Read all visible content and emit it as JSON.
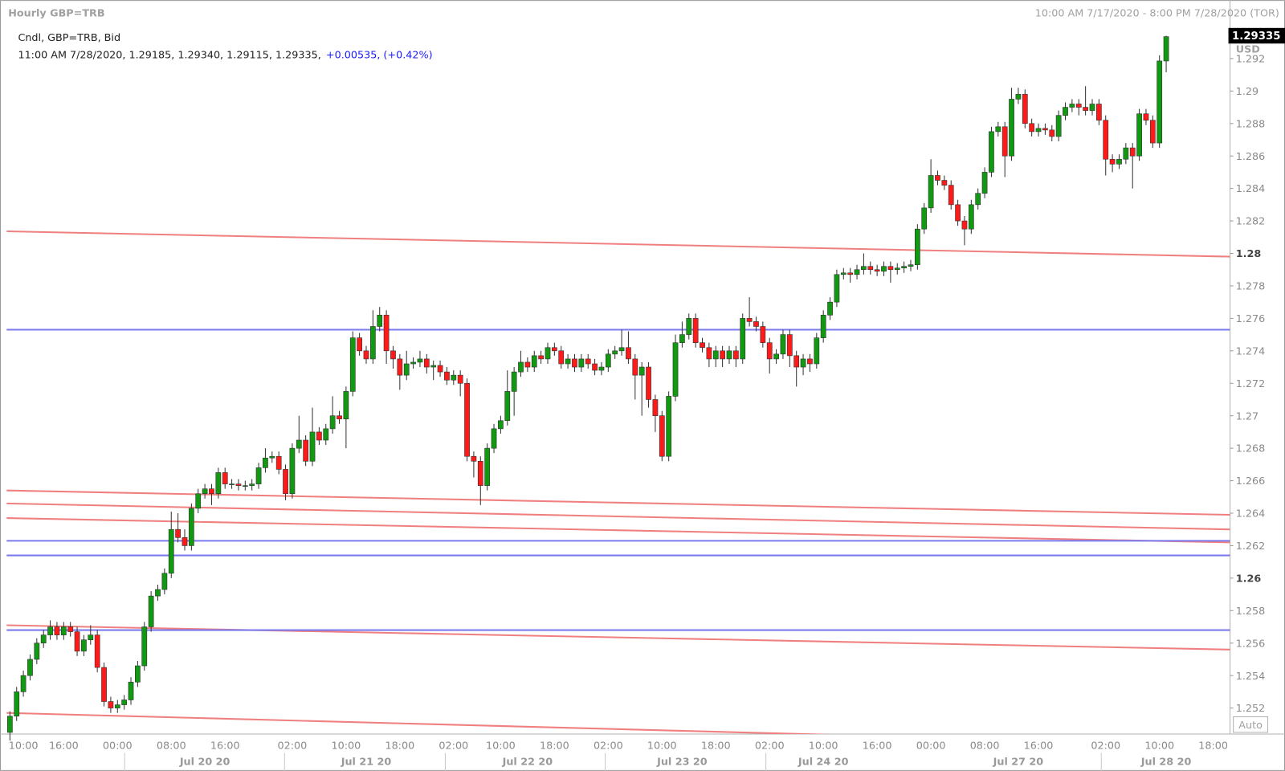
{
  "chart_data": {
    "type": "candlestick",
    "title": "Hourly GBP=TRB",
    "date_range": "10:00 AM 7/17/2020 - 8:00 PM 7/28/2020 (TOR)",
    "legend_title": "Cndl, GBP=TRB, Bid",
    "info_line": "11:00 AM 7/28/2020, 1.29185, 1.29340, 1.29115, 1.29335,",
    "info_change": "+0.00535, (+0.42%)",
    "last_price_label": "1.29335",
    "currency": "USD",
    "auto_label": "Auto",
    "up_color": "#119911",
    "down_color": "#ff1a1a",
    "change_color": "#1a1aff",
    "ylim": [
      1.2504,
      1.2955
    ],
    "yticks": [
      1.252,
      1.254,
      1.256,
      1.258,
      1.26,
      1.262,
      1.264,
      1.266,
      1.268,
      1.27,
      1.272,
      1.274,
      1.276,
      1.278,
      1.28,
      1.282,
      1.284,
      1.286,
      1.288,
      1.29,
      1.292
    ],
    "categories": [
      null,
      null,
      "10:00",
      null,
      null,
      null,
      null,
      null,
      "16:00",
      null,
      null,
      null,
      null,
      null,
      null,
      null,
      "00:00",
      null,
      null,
      null,
      null,
      null,
      null,
      null,
      "08:00",
      null,
      null,
      null,
      null,
      null,
      null,
      null,
      "16:00",
      null,
      null,
      null,
      null,
      null,
      null,
      null,
      null,
      null,
      "02:00",
      null,
      null,
      null,
      null,
      null,
      null,
      null,
      "10:00",
      null,
      null,
      null,
      null,
      null,
      null,
      null,
      "18:00",
      null,
      null,
      null,
      null,
      null,
      null,
      null,
      "02:00",
      null,
      null,
      null,
      null,
      null,
      null,
      "10:00",
      null,
      null,
      null,
      null,
      null,
      null,
      null,
      "18:00",
      null,
      null,
      null,
      null,
      null,
      null,
      null,
      "02:00",
      null,
      null,
      null,
      null,
      null,
      null,
      null,
      "10:00",
      null,
      null,
      null,
      null,
      null,
      null,
      null,
      "18:00",
      null,
      null,
      null,
      null,
      null,
      null,
      null,
      "02:00",
      null,
      null,
      null,
      null,
      null,
      null,
      null,
      "10:00",
      null,
      null,
      null,
      null,
      null,
      null,
      null,
      "16:00",
      null,
      null,
      null,
      null,
      null,
      null,
      null,
      "00:00",
      null,
      null,
      null,
      null,
      null,
      null,
      null,
      "08:00",
      null,
      null,
      null,
      null,
      null,
      null,
      null,
      "16:00",
      null,
      null,
      null,
      null,
      null,
      null,
      null,
      null,
      null,
      "02:00",
      null,
      null,
      null,
      null,
      null,
      null,
      null,
      "10:00",
      null,
      null,
      null,
      null,
      null,
      null,
      null,
      "18:00",
      null,
      null
    ],
    "date_labels": [
      null,
      null,
      null,
      null,
      null,
      null,
      null,
      null,
      null,
      null,
      null,
      null,
      null,
      null,
      null,
      null,
      null,
      null,
      null,
      null,
      null,
      null,
      null,
      null,
      null,
      null,
      null,
      null,
      null,
      "Jul 20 20",
      null,
      null,
      null,
      null,
      null,
      null,
      null,
      null,
      null,
      null,
      null,
      null,
      null,
      null,
      null,
      null,
      null,
      null,
      null,
      null,
      null,
      null,
      null,
      "Jul 21 20",
      null,
      null,
      null,
      null,
      null,
      null,
      null,
      null,
      null,
      null,
      null,
      null,
      null,
      null,
      null,
      null,
      null,
      null,
      null,
      null,
      null,
      null,
      null,
      "Jul 22 20",
      null,
      null,
      null,
      null,
      null,
      null,
      null,
      null,
      null,
      null,
      null,
      null,
      null,
      null,
      null,
      null,
      null,
      null,
      null,
      null,
      null,
      null,
      "Jul 23 20",
      null,
      null,
      null,
      null,
      null,
      null,
      null,
      null,
      null,
      null,
      null,
      null,
      null,
      null,
      null,
      null,
      null,
      null,
      null,
      null,
      "Jul 24 20",
      null,
      null,
      null,
      null,
      null,
      null,
      null,
      null,
      null,
      null,
      null,
      null,
      null,
      null,
      null,
      null,
      null,
      null,
      null,
      null,
      null,
      null,
      null,
      null,
      null,
      null,
      null,
      null,
      "Jul 27 20",
      null,
      null,
      null,
      null,
      null,
      null,
      null,
      null,
      null,
      null,
      null,
      null,
      null,
      null,
      null,
      null,
      null,
      null,
      null,
      null,
      null,
      "Jul 28 20",
      null,
      null,
      null,
      null,
      null,
      null,
      null,
      null,
      null
    ],
    "open": [
      1.2505,
      1.2515,
      1.253,
      1.254,
      1.255,
      1.256,
      1.2565,
      1.257,
      1.2565,
      1.257,
      1.2567,
      1.2555,
      1.2562,
      1.2565,
      1.2545,
      1.2524,
      1.252,
      1.2522,
      1.2525,
      1.2536,
      1.2546,
      1.257,
      1.2589,
      1.2593,
      1.2603,
      1.263,
      1.2625,
      1.262,
      1.2643,
      1.2652,
      1.2655,
      1.2652,
      1.2665,
      1.2658,
      1.2658,
      1.2657,
      1.2657,
      1.2658,
      1.2668,
      1.2674,
      1.2675,
      1.2667,
      1.2652,
      1.268,
      1.2685,
      1.2672,
      1.269,
      1.2685,
      1.2692,
      1.27,
      1.2698,
      1.2715,
      1.2748,
      1.274,
      1.2735,
      1.2755,
      1.2762,
      1.274,
      1.2735,
      1.2725,
      1.2732,
      1.2733,
      1.2735,
      1.273,
      1.2731,
      1.2727,
      1.2722,
      1.2725,
      1.272,
      1.2675,
      1.2672,
      1.2657,
      1.268,
      1.2692,
      1.2697,
      1.2715,
      1.2727,
      1.2733,
      1.273,
      1.2737,
      1.2735,
      1.2742,
      1.274,
      1.2732,
      1.2735,
      1.273,
      1.2735,
      1.2732,
      1.2728,
      1.273,
      1.2738,
      1.274,
      1.2742,
      1.2735,
      1.2725,
      1.273,
      1.271,
      1.27,
      1.2675,
      1.2712,
      1.2745,
      1.275,
      1.276,
      1.2745,
      1.2742,
      1.2735,
      1.274,
      1.2735,
      1.274,
      1.2735,
      1.276,
      1.2758,
      1.2755,
      1.2745,
      1.2735,
      1.2738,
      1.275,
      1.2737,
      1.273,
      1.2735,
      1.2732,
      1.2748,
      1.2762,
      1.277,
      1.2787,
      1.2788,
      1.2787,
      1.279,
      1.2792,
      1.279,
      1.2789,
      1.2792,
      1.279,
      1.2791,
      1.2792,
      1.2793,
      1.2815,
      1.2828,
      1.2848,
      1.2845,
      1.2842,
      1.283,
      1.282,
      1.2815,
      1.283,
      1.2837,
      1.285,
      1.2875,
      1.2878,
      1.286,
      1.2895,
      1.2898,
      1.288,
      1.2875,
      1.2877,
      1.2876,
      1.2872,
      1.2885,
      1.289,
      1.2892,
      1.289,
      1.2888,
      1.2892,
      1.2882,
      1.2858,
      1.2855,
      1.2858,
      1.2865,
      1.286,
      1.2886,
      1.2882,
      1.2868,
      1.29185,
      null,
      null,
      null,
      null,
      null,
      null,
      null,
      null,
      null
    ],
    "high": [
      1.2518,
      1.2533,
      1.2543,
      1.2553,
      1.2563,
      1.2568,
      1.2574,
      1.2573,
      1.2573,
      1.2573,
      1.257,
      1.2565,
      1.2571,
      1.2568,
      1.2548,
      1.2527,
      1.2525,
      1.2528,
      1.2539,
      1.2549,
      1.2573,
      1.2592,
      1.2596,
      1.2606,
      1.2641,
      1.264,
      1.263,
      1.2646,
      1.2655,
      1.2658,
      1.2658,
      1.2668,
      1.2668,
      1.2661,
      1.2661,
      1.266,
      1.2661,
      1.2671,
      1.268,
      1.2678,
      1.2678,
      1.267,
      1.2683,
      1.27,
      1.2688,
      1.2705,
      1.2693,
      1.2695,
      1.2712,
      1.2703,
      1.2718,
      1.2752,
      1.2751,
      1.2743,
      1.2765,
      1.2767,
      1.2765,
      1.2743,
      1.2738,
      1.274,
      1.2736,
      1.274,
      1.2738,
      1.2734,
      1.2734,
      1.273,
      1.2728,
      1.2728,
      1.2723,
      1.2678,
      1.2675,
      1.2683,
      1.2695,
      1.27,
      1.2728,
      1.273,
      1.274,
      1.2736,
      1.274,
      1.274,
      1.2745,
      1.2745,
      1.2743,
      1.2738,
      1.2738,
      1.2738,
      1.2738,
      1.2735,
      1.2733,
      1.2741,
      1.2743,
      1.2753,
      1.2752,
      1.2738,
      1.2733,
      1.2733,
      1.2713,
      1.2703,
      1.2715,
      1.275,
      1.2758,
      1.2763,
      1.2763,
      1.2748,
      1.2745,
      1.2743,
      1.2743,
      1.2743,
      1.2743,
      1.2763,
      1.2773,
      1.2761,
      1.2758,
      1.2748,
      1.2741,
      1.2753,
      1.2753,
      1.274,
      1.2738,
      1.2738,
      1.2751,
      1.2765,
      1.2773,
      1.279,
      1.2791,
      1.2791,
      1.2793,
      1.28,
      1.2795,
      1.2793,
      1.2795,
      1.2795,
      1.2794,
      1.2795,
      1.2796,
      1.2818,
      1.2831,
      1.2858,
      1.2851,
      1.2848,
      1.2845,
      1.2833,
      1.2823,
      1.2833,
      1.284,
      1.2853,
      1.2878,
      1.2881,
      1.2881,
      1.2902,
      1.2902,
      1.2901,
      1.2883,
      1.288,
      1.288,
      1.2879,
      1.2888,
      1.2893,
      1.2895,
      1.2895,
      1.2903,
      1.2895,
      1.2895,
      1.2885,
      1.2861,
      1.2861,
      1.2868,
      1.2868,
      1.2889,
      1.2889,
      1.2885,
      1.2922,
      1.2934,
      null,
      null,
      null,
      null,
      null,
      null,
      null,
      null,
      null
    ],
    "low": [
      1.25,
      1.2512,
      1.2527,
      1.2537,
      1.2547,
      1.2557,
      1.2562,
      1.2562,
      1.2562,
      1.2564,
      1.2552,
      1.2552,
      1.2559,
      1.2542,
      1.2521,
      1.2517,
      1.2517,
      1.2519,
      1.2522,
      1.2533,
      1.2543,
      1.2567,
      1.2586,
      1.259,
      1.26,
      1.2622,
      1.2617,
      1.2617,
      1.264,
      1.2649,
      1.2645,
      1.2649,
      1.2655,
      1.2655,
      1.2654,
      1.2654,
      1.2654,
      1.2655,
      1.2665,
      1.2671,
      1.2664,
      1.2648,
      1.2649,
      1.2677,
      1.2669,
      1.2669,
      1.2682,
      1.2682,
      1.2689,
      1.2695,
      1.268,
      1.2712,
      1.2737,
      1.2732,
      1.2732,
      1.2752,
      1.2732,
      1.2729,
      1.2716,
      1.2722,
      1.2729,
      1.273,
      1.2726,
      1.2722,
      1.2724,
      1.2719,
      1.2719,
      1.2712,
      1.2672,
      1.2662,
      1.2645,
      1.2654,
      1.2677,
      1.2689,
      1.2694,
      1.27,
      1.2724,
      1.2727,
      1.2727,
      1.2732,
      1.2732,
      1.2737,
      1.2729,
      1.2729,
      1.2727,
      1.2727,
      1.2729,
      1.2725,
      1.2725,
      1.2727,
      1.2735,
      1.2737,
      1.2732,
      1.271,
      1.27,
      1.2705,
      1.269,
      1.2672,
      1.2672,
      1.2709,
      1.2742,
      1.2747,
      1.2742,
      1.2739,
      1.273,
      1.273,
      1.273,
      1.2732,
      1.273,
      1.2732,
      1.2755,
      1.2752,
      1.2742,
      1.2726,
      1.2732,
      1.2735,
      1.273,
      1.2718,
      1.2725,
      1.2727,
      1.2729,
      1.2745,
      1.2759,
      1.2767,
      1.2784,
      1.2782,
      1.2784,
      1.2787,
      1.2787,
      1.2786,
      1.2786,
      1.2782,
      1.2787,
      1.2788,
      1.2789,
      1.279,
      1.2812,
      1.2825,
      1.2842,
      1.2839,
      1.2827,
      1.2817,
      1.2805,
      1.2812,
      1.2827,
      1.2834,
      1.2847,
      1.2872,
      1.2847,
      1.2857,
      1.2892,
      1.2877,
      1.2872,
      1.2872,
      1.2873,
      1.2869,
      1.2869,
      1.2882,
      1.2887,
      1.2885,
      1.2885,
      1.2885,
      1.2879,
      1.2848,
      1.285,
      1.2852,
      1.2855,
      1.284,
      1.2857,
      1.2879,
      1.2865,
      1.2865,
      1.29115,
      null,
      null,
      null,
      null,
      null,
      null,
      null,
      null,
      null
    ],
    "close": [
      1.2515,
      1.253,
      1.254,
      1.255,
      1.256,
      1.2565,
      1.257,
      1.2565,
      1.257,
      1.2567,
      1.2555,
      1.2562,
      1.2565,
      1.2545,
      1.2524,
      1.252,
      1.2522,
      1.2525,
      1.2536,
      1.2546,
      1.257,
      1.2589,
      1.2593,
      1.2603,
      1.263,
      1.2625,
      1.262,
      1.2643,
      1.2652,
      1.2655,
      1.2652,
      1.2665,
      1.2658,
      1.2658,
      1.2657,
      1.2657,
      1.2658,
      1.2668,
      1.2674,
      1.2675,
      1.2667,
      1.2652,
      1.268,
      1.2685,
      1.2672,
      1.269,
      1.2685,
      1.2692,
      1.27,
      1.2698,
      1.2715,
      1.2748,
      1.274,
      1.2735,
      1.2755,
      1.2762,
      1.274,
      1.2735,
      1.2725,
      1.2732,
      1.2733,
      1.2735,
      1.273,
      1.2731,
      1.2727,
      1.2722,
      1.2725,
      1.272,
      1.2675,
      1.2672,
      1.2657,
      1.268,
      1.2692,
      1.2697,
      1.2715,
      1.2727,
      1.2733,
      1.273,
      1.2737,
      1.2735,
      1.2742,
      1.274,
      1.2732,
      1.2735,
      1.273,
      1.2735,
      1.2732,
      1.2728,
      1.273,
      1.2738,
      1.274,
      1.2742,
      1.2735,
      1.2725,
      1.273,
      1.271,
      1.27,
      1.2675,
      1.2712,
      1.2745,
      1.275,
      1.276,
      1.2745,
      1.2742,
      1.2735,
      1.274,
      1.2735,
      1.274,
      1.2735,
      1.276,
      1.2758,
      1.2755,
      1.2745,
      1.2735,
      1.2738,
      1.275,
      1.2737,
      1.273,
      1.2735,
      1.2732,
      1.2748,
      1.2762,
      1.277,
      1.2787,
      1.2788,
      1.2787,
      1.279,
      1.2792,
      1.279,
      1.2789,
      1.2792,
      1.279,
      1.2791,
      1.2792,
      1.2793,
      1.2815,
      1.2828,
      1.2848,
      1.2845,
      1.2842,
      1.283,
      1.282,
      1.2815,
      1.283,
      1.2837,
      1.285,
      1.2875,
      1.2878,
      1.286,
      1.2895,
      1.2898,
      1.288,
      1.2875,
      1.2877,
      1.2876,
      1.2872,
      1.2885,
      1.289,
      1.2892,
      1.289,
      1.2888,
      1.2892,
      1.2882,
      1.2858,
      1.2855,
      1.2858,
      1.2865,
      1.286,
      1.2886,
      1.2882,
      1.2868,
      1.29185,
      1.29335,
      null,
      null,
      null,
      null,
      null,
      null,
      null,
      null,
      null
    ],
    "lines": [
      {
        "color": "#f08080",
        "start": 1.28136,
        "end": 1.2798
      },
      {
        "color": "#f08080",
        "start": 1.2654,
        "end": 1.2639
      },
      {
        "color": "#f08080",
        "start": 1.2646,
        "end": 1.263
      },
      {
        "color": "#f08080",
        "start": 1.2637,
        "end": 1.2622
      },
      {
        "color": "#f08080",
        "start": 1.2571,
        "end": 1.2556
      },
      {
        "color": "#f08080",
        "start": 1.2517,
        "end": 1.2497
      },
      {
        "color": "#7b7bef",
        "start": 1.2753,
        "end": 1.2753
      },
      {
        "color": "#7b7bef",
        "start": 1.2623,
        "end": 1.2623
      },
      {
        "color": "#7b7bef",
        "start": 1.2614,
        "end": 1.2614
      },
      {
        "color": "#7b7bef",
        "start": 1.2568,
        "end": 1.2568
      }
    ]
  }
}
